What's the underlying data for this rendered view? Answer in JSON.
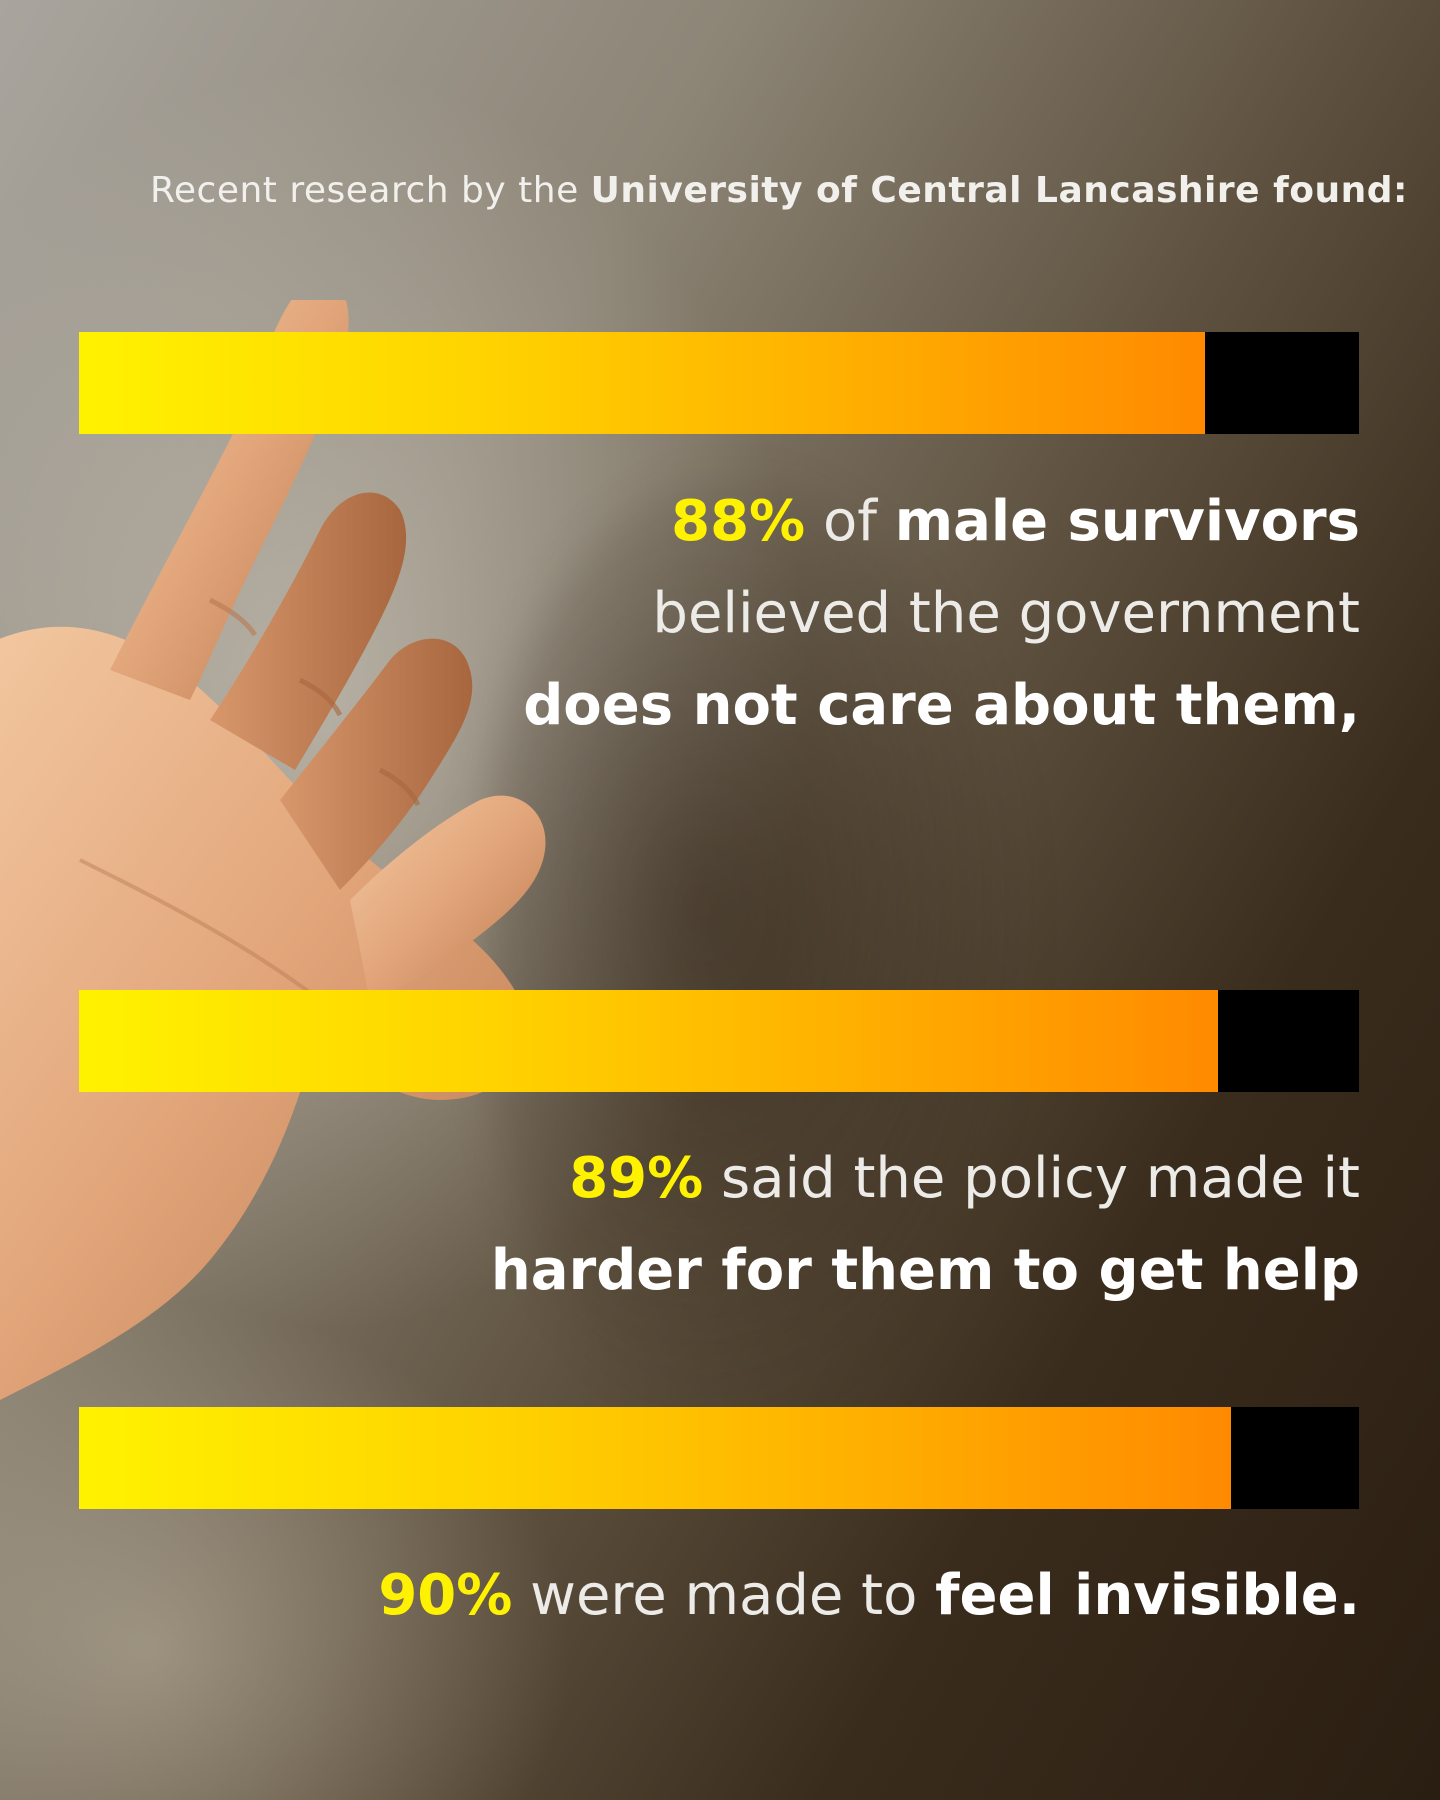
{
  "headline": {
    "intro": "Recent research by the ",
    "source": "University of Central Lancashire found:"
  },
  "stats": [
    {
      "percent": "88%",
      "value": 88,
      "line1_rest": " of ",
      "line1_bold": "male survivors",
      "line2": "believed the government",
      "line3_bold": "does not care about them,"
    },
    {
      "percent": "89%",
      "value": 89,
      "line1_rest": " said the policy made it",
      "line2_bold": "harder for them to get help"
    },
    {
      "percent": "90%",
      "value": 90,
      "line1_rest": " were made to ",
      "line1_bold": "feel invisible."
    }
  ],
  "colors": {
    "accent_yellow": "#fff200",
    "gradient_start": "#fff200",
    "gradient_end": "#ff8a00",
    "bar_track": "#000000",
    "text": "#ffffff"
  }
}
